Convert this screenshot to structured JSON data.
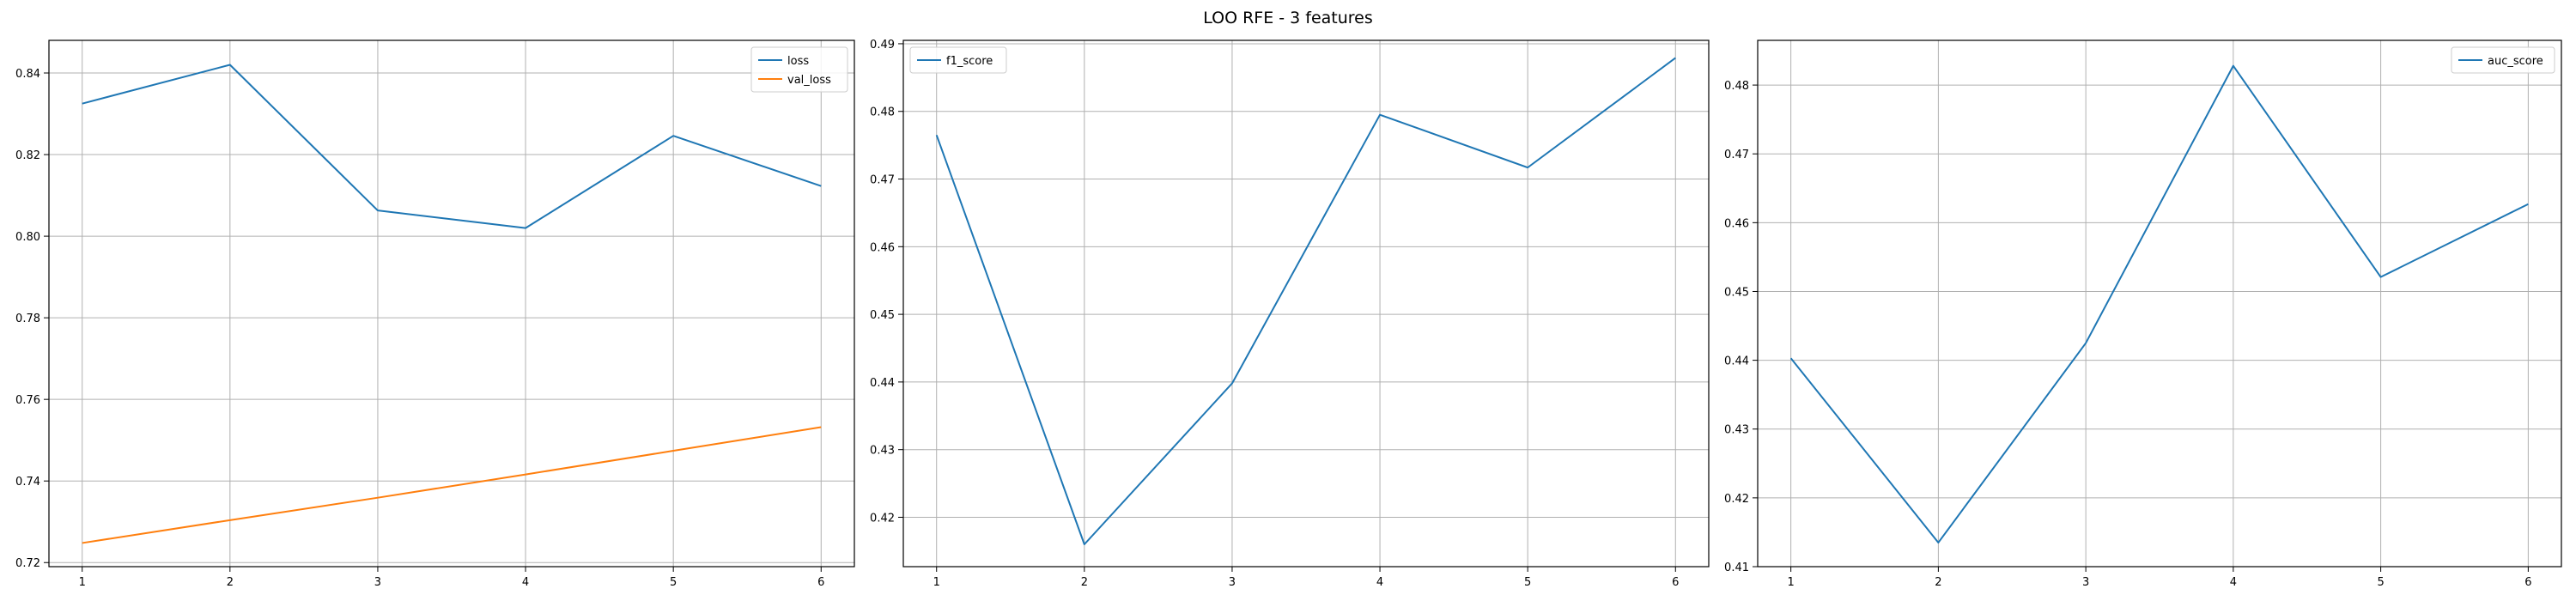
{
  "figure": {
    "title": "LOO RFE - 3 features"
  },
  "chart_data": [
    {
      "type": "line",
      "x": [
        1,
        2,
        3,
        4,
        5,
        6
      ],
      "xticks": [
        1,
        2,
        3,
        4,
        5,
        6
      ],
      "ylim": [
        0.719,
        0.848
      ],
      "yticks": [
        0.72,
        0.74,
        0.76,
        0.78,
        0.8,
        0.82,
        0.84
      ],
      "ytick_labels": [
        "0.72",
        "0.74",
        "0.76",
        "0.78",
        "0.80",
        "0.82",
        "0.84"
      ],
      "grid": true,
      "legend_position": "top-right",
      "series": [
        {
          "name": "loss",
          "color": "#1f77b4",
          "values": [
            0.8325,
            0.842,
            0.8063,
            0.802,
            0.8246,
            0.8123
          ]
        },
        {
          "name": "val_loss",
          "color": "#ff7f0e",
          "values": [
            0.7248,
            0.7304,
            0.7359,
            0.7416,
            0.7474,
            0.7532
          ]
        }
      ]
    },
    {
      "type": "line",
      "x": [
        1,
        2,
        3,
        4,
        5,
        6
      ],
      "xticks": [
        1,
        2,
        3,
        4,
        5,
        6
      ],
      "ylim": [
        0.4127,
        0.4905
      ],
      "yticks": [
        0.42,
        0.43,
        0.44,
        0.45,
        0.46,
        0.47,
        0.48,
        0.49
      ],
      "ytick_labels": [
        "0.42",
        "0.43",
        "0.44",
        "0.45",
        "0.46",
        "0.47",
        "0.48",
        "0.49"
      ],
      "grid": true,
      "legend_position": "top-left",
      "series": [
        {
          "name": "f1_score",
          "color": "#1f77b4",
          "values": [
            0.4765,
            0.416,
            0.4398,
            0.4795,
            0.4717,
            0.4879
          ]
        }
      ]
    },
    {
      "type": "line",
      "x": [
        1,
        2,
        3,
        4,
        5,
        6
      ],
      "xticks": [
        1,
        2,
        3,
        4,
        5,
        6
      ],
      "ylim": [
        0.41,
        0.4865
      ],
      "yticks": [
        0.41,
        0.42,
        0.43,
        0.44,
        0.45,
        0.46,
        0.47,
        0.48
      ],
      "ytick_labels": [
        "0.41",
        "0.42",
        "0.43",
        "0.44",
        "0.45",
        "0.46",
        "0.47",
        "0.48"
      ],
      "grid": true,
      "legend_position": "top-right",
      "series": [
        {
          "name": "auc_score",
          "color": "#1f77b4",
          "values": [
            0.4403,
            0.4135,
            0.4425,
            0.4828,
            0.4521,
            0.4627
          ]
        }
      ]
    }
  ]
}
